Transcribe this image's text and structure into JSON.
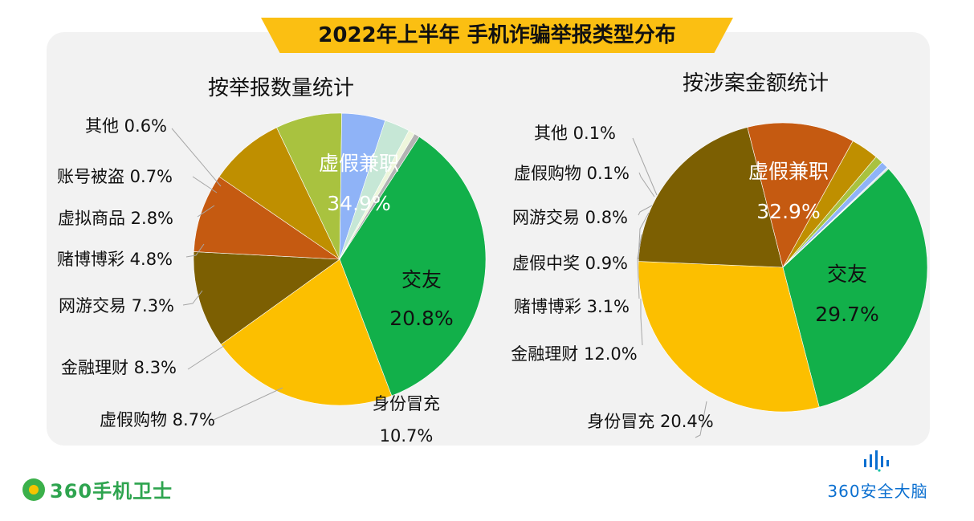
{
  "main_title": "2022年上半年 手机诈骗举报类型分布",
  "brand": {
    "left": "360手机卫士",
    "right": "360安全大脑"
  },
  "colors": {
    "banner": "#fbbf12",
    "panel": "#f2f2f2",
    "brand_green": "#2ea44f",
    "brand_blue": "#0a6fd0"
  },
  "chart_data": [
    {
      "type": "pie",
      "title": "按举报数量统计",
      "slices": [
        {
          "label": "虚假兼职",
          "value": 34.9,
          "display": "34.9%",
          "color": "#12b04a"
        },
        {
          "label": "交友",
          "value": 20.8,
          "display": "20.8%",
          "color": "#fcbf00"
        },
        {
          "label": "身份冒充",
          "value": 10.7,
          "display": "10.7%",
          "color": "#7c5f02"
        },
        {
          "label": "虚假购物",
          "value": 8.7,
          "display": "8.7%",
          "color": "#c55a11"
        },
        {
          "label": "金融理财",
          "value": 8.3,
          "display": "8.3%",
          "color": "#bf8f00"
        },
        {
          "label": "网游交易",
          "value": 7.3,
          "display": "7.3%",
          "color": "#a9c23f"
        },
        {
          "label": "赌博博彩",
          "value": 4.8,
          "display": "4.8%",
          "color": "#8fb3f7"
        },
        {
          "label": "虚拟商品",
          "value": 2.8,
          "display": "2.8%",
          "color": "#c6e7d6"
        },
        {
          "label": "账号被盗",
          "value": 0.7,
          "display": "0.7%",
          "color": "#eef6dc"
        },
        {
          "label": "其他",
          "value": 0.6,
          "display": "0.6%",
          "color": "#b3b3b3"
        }
      ]
    },
    {
      "type": "pie",
      "title": "按涉案金额统计",
      "slices": [
        {
          "label": "虚假兼职",
          "value": 32.9,
          "display": "32.9%",
          "color": "#12b04a"
        },
        {
          "label": "交友",
          "value": 29.7,
          "display": "29.7%",
          "color": "#fcbf00"
        },
        {
          "label": "身份冒充",
          "value": 20.4,
          "display": "20.4%",
          "color": "#7c5f02"
        },
        {
          "label": "金融理财",
          "value": 12.0,
          "display": "12.0%",
          "color": "#c55a11"
        },
        {
          "label": "赌博博彩",
          "value": 3.1,
          "display": "3.1%",
          "color": "#bf8f00"
        },
        {
          "label": "虚假中奖",
          "value": 0.9,
          "display": "0.9%",
          "color": "#a9c23f"
        },
        {
          "label": "网游交易",
          "value": 0.8,
          "display": "0.8%",
          "color": "#8fb3f7"
        },
        {
          "label": "虚假购物",
          "value": 0.1,
          "display": "0.1%",
          "color": "#c6e7d6"
        },
        {
          "label": "其他",
          "value": 0.1,
          "display": "0.1%",
          "color": "#b3b3b3"
        }
      ]
    }
  ]
}
